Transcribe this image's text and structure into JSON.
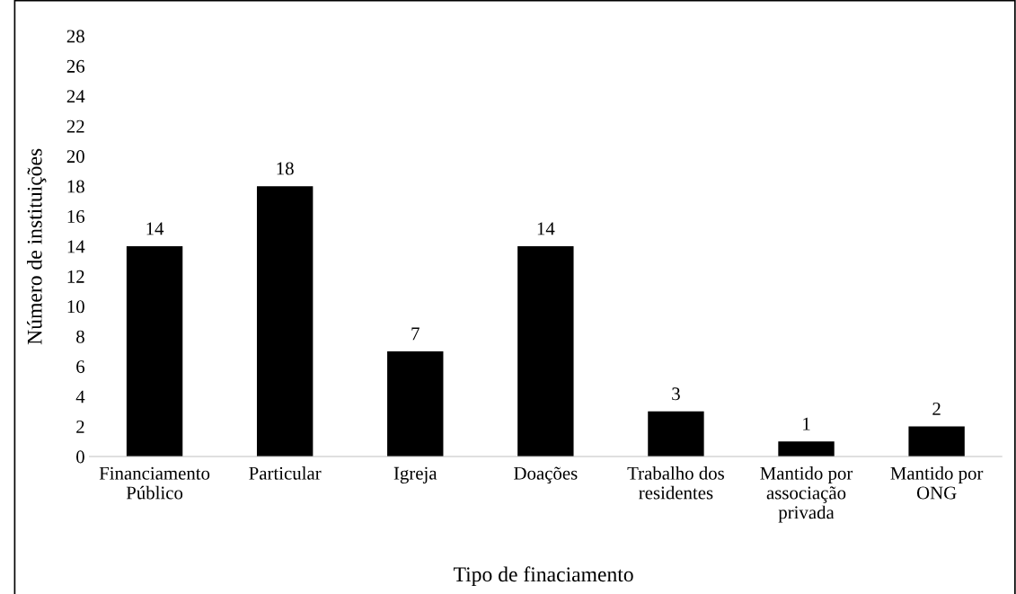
{
  "chart_data": {
    "type": "bar",
    "xlabel": "Tipo de finaciamento",
    "ylabel": "Número de instituições",
    "categories": [
      "Financiamento\nPúblico",
      "Particular",
      "Igreja",
      "Doações",
      "Trabalho dos\nresidentes",
      "Mantido por\nassociação\nprivada",
      "Mantido por\nONG"
    ],
    "values": [
      14,
      18,
      7,
      14,
      3,
      1,
      2
    ],
    "color": "#000000",
    "ylim": [
      0,
      28
    ],
    "yticks": [
      0,
      2,
      4,
      6,
      8,
      10,
      12,
      14,
      16,
      18,
      20,
      22,
      24,
      26,
      28
    ],
    "grid": false,
    "data_labels": true
  }
}
